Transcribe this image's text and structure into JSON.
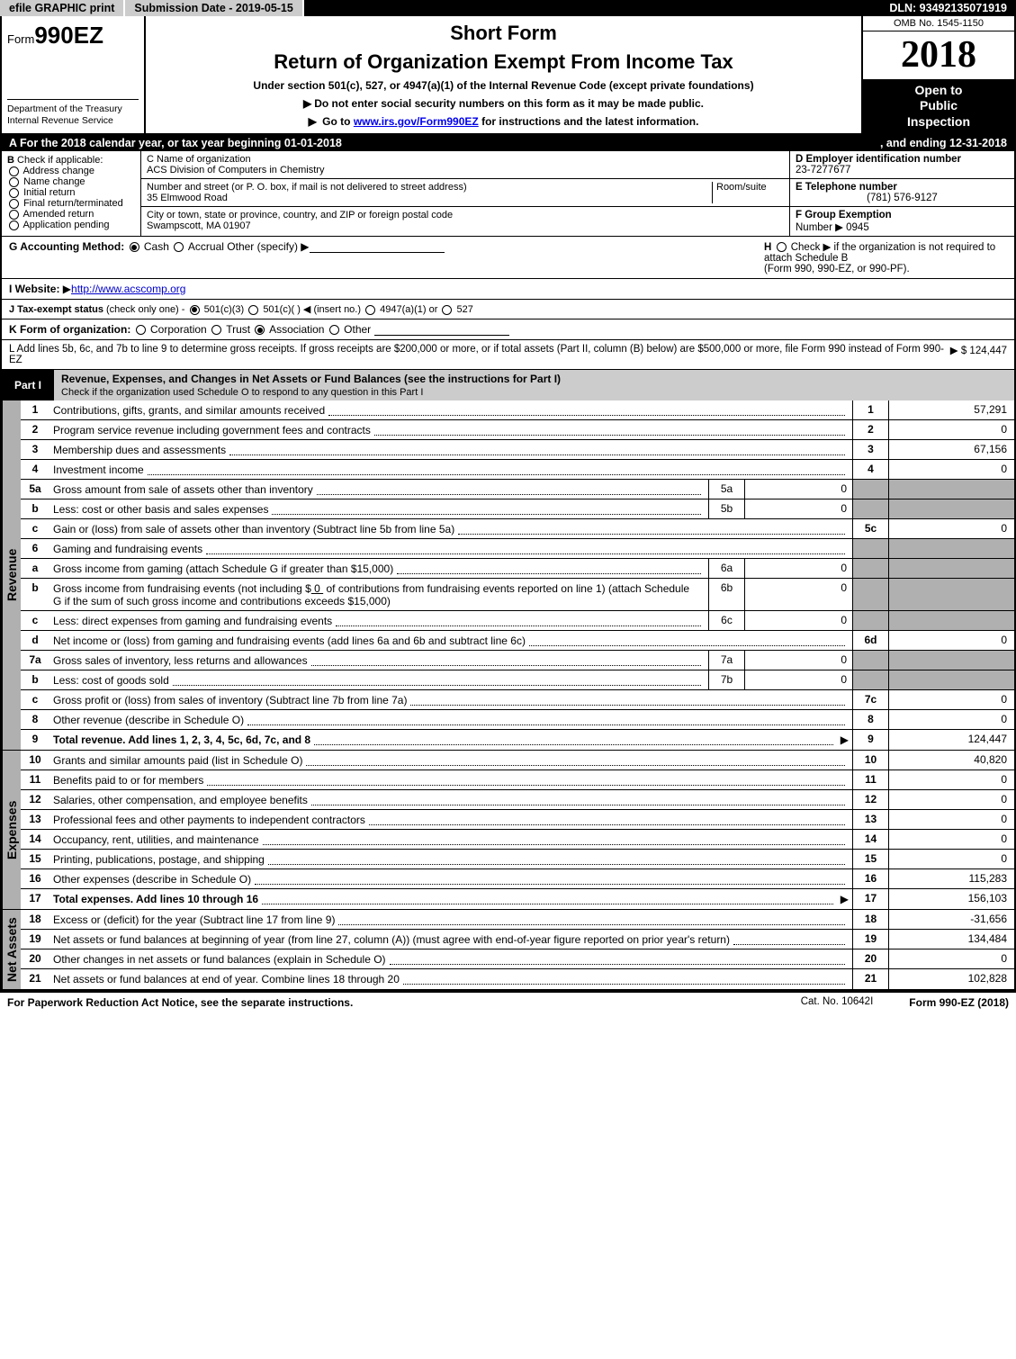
{
  "topbar": {
    "efile": "efile GRAPHIC print",
    "submission_label": "Submission Date - 2019-05-15",
    "dln": "DLN: 93492135071919"
  },
  "header": {
    "form_prefix": "Form",
    "form_number": "990EZ",
    "dept1": "Department of the Treasury",
    "dept2": "Internal Revenue Service",
    "short_form": "Short Form",
    "title": "Return of Organization Exempt From Income Tax",
    "sub1": "Under section 501(c), 527, or 4947(a)(1) of the Internal Revenue Code (except private foundations)",
    "sub2": "Do not enter social security numbers on this form as it may be made public.",
    "sub3_pre": "Go to ",
    "sub3_link": "www.irs.gov/Form990EZ",
    "sub3_post": " for instructions and the latest information.",
    "omb": "OMB No. 1545-1150",
    "year": "2018",
    "inspect1": "Open to",
    "inspect2": "Public",
    "inspect3": "Inspection"
  },
  "lineA": {
    "text_pre": "For the 2018 calendar year, or tax year beginning ",
    "begin": "01-01-2018",
    "mid": ", and ending ",
    "end": "12-31-2018"
  },
  "boxB": {
    "title": "Check if applicable:",
    "items": [
      "Address change",
      "Name change",
      "Initial return",
      "Final return/terminated",
      "Amended return",
      "Application pending"
    ]
  },
  "boxC": {
    "label": "C Name of organization",
    "name": "ACS Division of Computers in Chemistry",
    "street_label": "Number and street (or P. O. box, if mail is not delivered to street address)",
    "room_label": "Room/suite",
    "street": "35 Elmwood Road",
    "city_label": "City or town, state or province, country, and ZIP or foreign postal code",
    "city": "Swampscott, MA  01907"
  },
  "boxD": {
    "label": "D Employer identification number",
    "value": "23-7277677"
  },
  "boxE": {
    "label": "E Telephone number",
    "value": "(781) 576-9127"
  },
  "boxF": {
    "label": "F Group Exemption",
    "num_label": "Number",
    "value": "0945"
  },
  "rowG": {
    "label": "G Accounting Method:",
    "cash": "Cash",
    "accrual": "Accrual",
    "other": "Other (specify)"
  },
  "rowH": {
    "text1": "Check ▶     if the organization is not required to attach Schedule B",
    "text2": "(Form 990, 990-EZ, or 990-PF)."
  },
  "rowI": {
    "label": "I Website:",
    "value": "http://www.acscomp.org"
  },
  "rowJ": {
    "label": "J Tax-exempt status",
    "note": "(check only one) - ",
    "o1": "501(c)(3)",
    "o2": "501(c)(  )  ◀ (insert no.)",
    "o3": "4947(a)(1) or",
    "o4": "527"
  },
  "rowK": {
    "label": "K Form of organization:",
    "o1": "Corporation",
    "o2": "Trust",
    "o3": "Association",
    "o4": "Other"
  },
  "rowL": {
    "text": "L Add lines 5b, 6c, and 7b to line 9 to determine gross receipts. If gross receipts are $200,000 or more, or if total assets (Part II, column (B) below) are $500,000 or more, file Form 990 instead of Form 990-EZ",
    "value": "$ 124,447"
  },
  "part1": {
    "tab": "Part I",
    "title": "Revenue, Expenses, and Changes in Net Assets or Fund Balances (see the instructions for Part I)",
    "sub": "Check if the organization used Schedule O to respond to any question in this Part I"
  },
  "sections": {
    "revenue": "Revenue",
    "expenses": "Expenses",
    "netassets": "Net Assets"
  },
  "lines": {
    "l1": {
      "n": "1",
      "d": "Contributions, gifts, grants, and similar amounts received",
      "bn": "1",
      "v": "57,291"
    },
    "l2": {
      "n": "2",
      "d": "Program service revenue including government fees and contracts",
      "bn": "2",
      "v": "0"
    },
    "l3": {
      "n": "3",
      "d": "Membership dues and assessments",
      "bn": "3",
      "v": "67,156"
    },
    "l4": {
      "n": "4",
      "d": "Investment income",
      "bn": "4",
      "v": "0"
    },
    "l5a": {
      "n": "5a",
      "d": "Gross amount from sale of assets other than inventory",
      "s": "5a",
      "sv": "0"
    },
    "l5b": {
      "n": "b",
      "d": "Less: cost or other basis and sales expenses",
      "s": "5b",
      "sv": "0"
    },
    "l5c": {
      "n": "c",
      "d": "Gain or (loss) from sale of assets other than inventory (Subtract line 5b from line 5a)",
      "bn": "5c",
      "v": "0"
    },
    "l6": {
      "n": "6",
      "d": "Gaming and fundraising events"
    },
    "l6a": {
      "n": "a",
      "d": "Gross income from gaming (attach Schedule G if greater than $15,000)",
      "s": "6a",
      "sv": "0"
    },
    "l6b": {
      "n": "b",
      "d1": "Gross income from fundraising events (not including $",
      "amt": "0",
      "d2": " of contributions from fundraising events reported on line 1) (attach Schedule G if the sum of such gross income and contributions exceeds $15,000)",
      "s": "6b",
      "sv": "0"
    },
    "l6c": {
      "n": "c",
      "d": "Less: direct expenses from gaming and fundraising events",
      "s": "6c",
      "sv": "0"
    },
    "l6d": {
      "n": "d",
      "d": "Net income or (loss) from gaming and fundraising events (add lines 6a and 6b and subtract line 6c)",
      "bn": "6d",
      "v": "0"
    },
    "l7a": {
      "n": "7a",
      "d": "Gross sales of inventory, less returns and allowances",
      "s": "7a",
      "sv": "0"
    },
    "l7b": {
      "n": "b",
      "d": "Less: cost of goods sold",
      "s": "7b",
      "sv": "0"
    },
    "l7c": {
      "n": "c",
      "d": "Gross profit or (loss) from sales of inventory (Subtract line 7b from line 7a)",
      "bn": "7c",
      "v": "0"
    },
    "l8": {
      "n": "8",
      "d": "Other revenue (describe in Schedule O)",
      "bn": "8",
      "v": "0"
    },
    "l9": {
      "n": "9",
      "d": "Total revenue. Add lines 1, 2, 3, 4, 5c, 6d, 7c, and 8",
      "bn": "9",
      "v": "124,447",
      "bold": true,
      "arrow": true
    },
    "l10": {
      "n": "10",
      "d": "Grants and similar amounts paid (list in Schedule O)",
      "bn": "10",
      "v": "40,820"
    },
    "l11": {
      "n": "11",
      "d": "Benefits paid to or for members",
      "bn": "11",
      "v": "0"
    },
    "l12": {
      "n": "12",
      "d": "Salaries, other compensation, and employee benefits",
      "bn": "12",
      "v": "0"
    },
    "l13": {
      "n": "13",
      "d": "Professional fees and other payments to independent contractors",
      "bn": "13",
      "v": "0"
    },
    "l14": {
      "n": "14",
      "d": "Occupancy, rent, utilities, and maintenance",
      "bn": "14",
      "v": "0"
    },
    "l15": {
      "n": "15",
      "d": "Printing, publications, postage, and shipping",
      "bn": "15",
      "v": "0"
    },
    "l16": {
      "n": "16",
      "d": "Other expenses (describe in Schedule O)",
      "bn": "16",
      "v": "115,283"
    },
    "l17": {
      "n": "17",
      "d": "Total expenses. Add lines 10 through 16",
      "bn": "17",
      "v": "156,103",
      "bold": true,
      "arrow": true
    },
    "l18": {
      "n": "18",
      "d": "Excess or (deficit) for the year (Subtract line 17 from line 9)",
      "bn": "18",
      "v": "-31,656"
    },
    "l19": {
      "n": "19",
      "d": "Net assets or fund balances at beginning of year (from line 27, column (A)) (must agree with end-of-year figure reported on prior year's return)",
      "bn": "19",
      "v": "134,484"
    },
    "l20": {
      "n": "20",
      "d": "Other changes in net assets or fund balances (explain in Schedule O)",
      "bn": "20",
      "v": "0"
    },
    "l21": {
      "n": "21",
      "d": "Net assets or fund balances at end of year. Combine lines 18 through 20",
      "bn": "21",
      "v": "102,828"
    }
  },
  "footer": {
    "left": "For Paperwork Reduction Act Notice, see the separate instructions.",
    "mid": "Cat. No. 10642I",
    "right": "Form 990-EZ (2018)"
  }
}
